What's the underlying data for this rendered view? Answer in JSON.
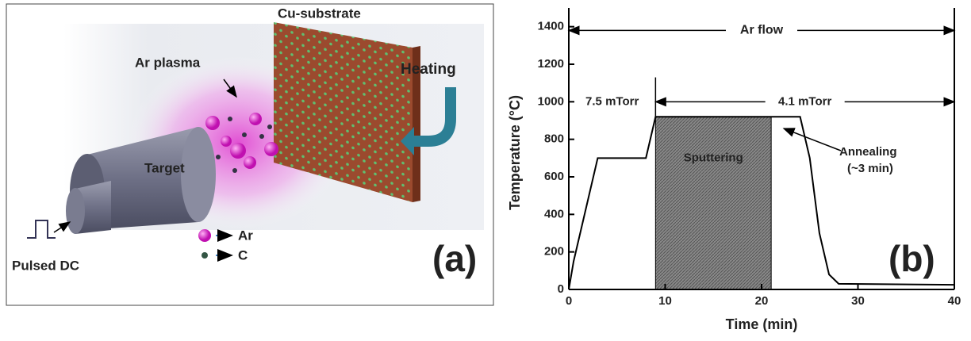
{
  "diagram": {
    "labels": {
      "substrate": "Cu-substrate",
      "plasma": "Ar plasma",
      "heating": "Heating",
      "target": "Target",
      "source": "Pulsed DC",
      "ar": "Ar",
      "c": "C"
    },
    "panel_label": "(a)"
  },
  "chart_data": {
    "type": "line",
    "panel_label": "(b)",
    "x_label": "Time (min)",
    "y_label": "Temperature (°C)",
    "x": [
      0,
      0.5,
      3,
      8,
      9,
      24,
      25,
      26,
      27,
      28,
      40
    ],
    "series": [
      {
        "color": "#000000",
        "values": [
          0,
          150,
          700,
          700,
          920,
          920,
          700,
          300,
          80,
          30,
          25
        ]
      }
    ],
    "xlim": [
      0,
      40
    ],
    "ylim": [
      0,
      1500
    ],
    "xticks": [
      0,
      10,
      20,
      30,
      40
    ],
    "yticks": [
      0,
      200,
      400,
      600,
      800,
      1000,
      1200,
      1400
    ],
    "shaded_region": {
      "label": "Sputtering",
      "x": [
        9,
        21
      ],
      "y": [
        0,
        920
      ]
    },
    "annotations": [
      {
        "text": "Ar flow",
        "x": [
          0,
          40
        ]
      },
      {
        "text": "7.5 mTorr",
        "x": [
          0,
          9
        ]
      },
      {
        "text": "4.1 mTorr",
        "x": [
          9,
          40
        ]
      },
      {
        "text": "Annealing",
        "subtext": "(~3 min)"
      }
    ]
  }
}
